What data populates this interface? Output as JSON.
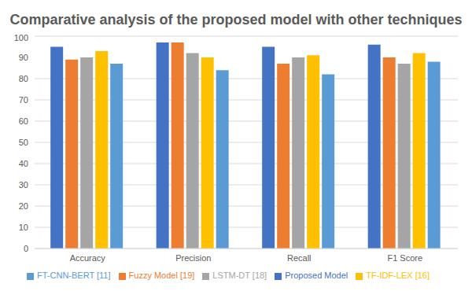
{
  "chart_data": {
    "type": "bar",
    "title": "Comparative analysis of the proposed model with other techniques",
    "categories": [
      "Accuracy",
      "Precision",
      "Recall",
      "F1 Score"
    ],
    "series": [
      {
        "name": "Proposed Model",
        "color": "#4472c4",
        "values": [
          95,
          97,
          95,
          96
        ]
      },
      {
        "name": "Fuzzy Model [19]",
        "color": "#ed7d31",
        "values": [
          89,
          97,
          87,
          90
        ]
      },
      {
        "name": "LSTM-DT [18]",
        "color": "#a5a5a5",
        "values": [
          90,
          92,
          90,
          87
        ]
      },
      {
        "name": "TF-IDF-LEX [16]",
        "color": "#ffc000",
        "values": [
          93,
          90,
          91,
          92
        ]
      },
      {
        "name": "FT-CNN-BERT [11]",
        "color": "#5b9bd5",
        "values": [
          87,
          84,
          82,
          88
        ]
      }
    ],
    "ylim": [
      0,
      100
    ],
    "yticks": [
      0,
      10,
      20,
      30,
      40,
      50,
      60,
      70,
      80,
      90,
      100
    ],
    "grid": true,
    "legend": "bottom"
  }
}
